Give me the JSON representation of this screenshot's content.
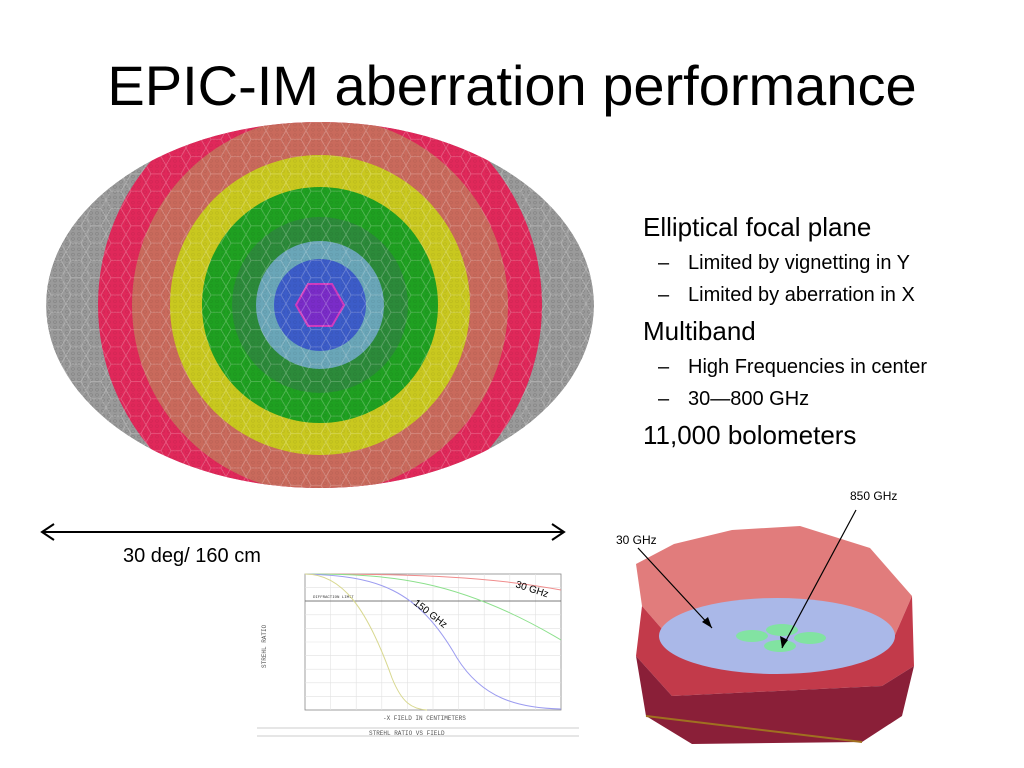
{
  "slide": {
    "title": "EPIC-IM aberration performance",
    "bullets": [
      {
        "text": "Elliptical focal plane",
        "sub": [
          "Limited by vignetting in Y",
          "Limited by aberration in X"
        ]
      },
      {
        "text": "Multiband",
        "sub": [
          "High Frequencies in center",
          "30—800 GHz"
        ]
      },
      {
        "text": "11,000 bolometers",
        "sub": []
      }
    ],
    "sub_dash": "–",
    "scale_label": "30 deg/ 160 cm"
  },
  "strehl_plot": {
    "annotations": {
      "ghz30": "30 GHz",
      "ghz150": "150 GHz"
    },
    "limit_label": "DIFFRACTION LIMIT",
    "y_axis_label": "STREHL RATIO",
    "x_axis_label": "-X FIELD IN CENTIMETERS",
    "caption": "STREHL RATIO VS FIELD",
    "colors": {
      "ghz30": "#f08c8c",
      "mid": "#8ce08c",
      "ghz150": "#9c9cf0",
      "high": "#d8d890"
    }
  },
  "cutaway": {
    "label_high": "850 GHz",
    "label_low": "30 GHz",
    "colors": {
      "shell": "#d75050",
      "pixels_blue": "#9bb0e8",
      "pixels_green": "#7de89a"
    }
  },
  "focal_plane": {
    "colors": {
      "outer": "#999999",
      "red": "#e0285a",
      "pink": "#c86060",
      "yellow": "#c8c81e",
      "green": "#20a020",
      "teal": "#2f8f8f",
      "blue": "#3c5cc8",
      "violet": "#7a2cc8"
    }
  }
}
